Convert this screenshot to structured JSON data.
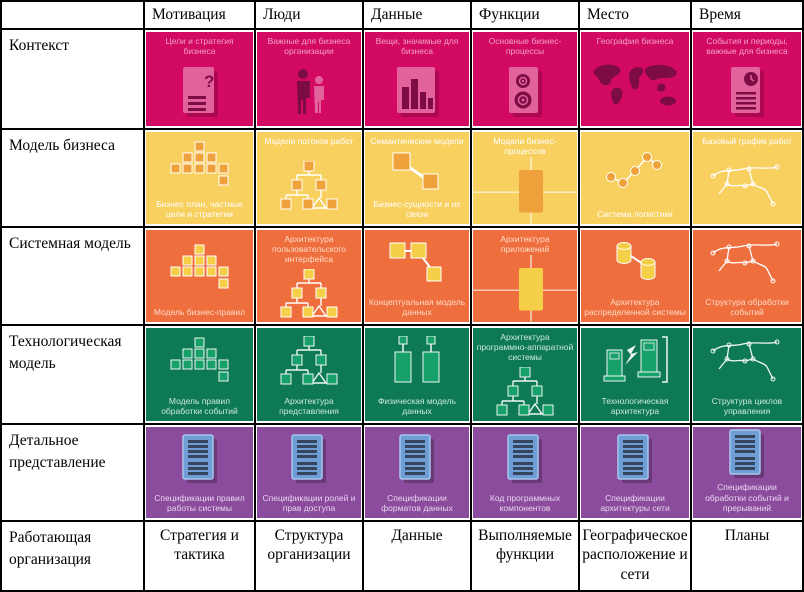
{
  "framework": {
    "columns": [
      "Мотивация",
      "Люди",
      "Данные",
      "Функции",
      "Место",
      "Время"
    ],
    "perspectives": [
      {
        "label": "Контекст",
        "bg": "#d20a64",
        "caption_color": "#f2a1c5",
        "icon_colors": {
          "box": "#e2639c",
          "line": "#f5b5d0",
          "dark": "#7e0c44"
        },
        "cells": [
          {
            "caption_top": "Цели и стратегия бизнеса",
            "icon": "document-question-icon"
          },
          {
            "caption_top": "Важные для бизнеса организации",
            "icon": "people-icon"
          },
          {
            "caption_top": "Вещи, значимые для бизнеса",
            "icon": "buildings-icon"
          },
          {
            "caption_top": "Основные бизнес-процессы",
            "icon": "document-gears-icon"
          },
          {
            "caption_top": "География бизнеса",
            "icon": "world-map-icon"
          },
          {
            "caption_top": "События и периоды, важные для бизнеса",
            "icon": "document-clock-icon"
          }
        ]
      },
      {
        "label": "Модель бизнеса",
        "bg": "#f8d060",
        "caption_color": "#ffffff",
        "icon_colors": {
          "box": "#efa23c",
          "line": "#ffffff",
          "dark": "#c77f24"
        },
        "cells": [
          {
            "caption_bottom": "Бизнес план, частные цели и стратегии",
            "icon": "pyramid-boxes-icon"
          },
          {
            "caption_top": "Модели потоков работ",
            "icon": "tree-boxes-icon"
          },
          {
            "caption_top": "Семантические модели",
            "caption_bottom": "Бизнес-сущности и их связи",
            "icon": "linked-boxes-2-icon"
          },
          {
            "caption_top": "Модели бизнес-процессов",
            "icon": "process-cross-icon"
          },
          {
            "caption_bottom": "Система логистики",
            "icon": "network-nodes-icon"
          },
          {
            "caption_top": "Базовый график работ",
            "icon": "sketch-network-icon"
          }
        ]
      },
      {
        "label": "Системная модель",
        "bg": "#ee6f3d",
        "caption_color": "#ffd9c6",
        "icon_colors": {
          "box": "#f6cf48",
          "line": "#ffffff",
          "dark": "#d8ab2a"
        },
        "cells": [
          {
            "caption_bottom": "Модель бизнес-правил",
            "icon": "pyramid-boxes-icon"
          },
          {
            "caption_top": "Архитектура пользовательского интерфейса",
            "icon": "tree-boxes-icon"
          },
          {
            "caption_bottom": "Концептуальная модель данных",
            "icon": "linked-boxes-3-icon"
          },
          {
            "caption_top": "Архитектура приложений",
            "icon": "process-cross-icon"
          },
          {
            "caption_bottom": "Архитектура распределенной системы",
            "icon": "cylinders-icon"
          },
          {
            "caption_bottom": "Структура обработки событий",
            "icon": "sketch-network-icon"
          }
        ]
      },
      {
        "label": "Технологическая модель",
        "bg": "#0d7a55",
        "caption_color": "#cfe9db",
        "icon_colors": {
          "box": "#17a069",
          "line": "#eef7f2",
          "dark": "#0a5c40"
        },
        "cells": [
          {
            "caption_bottom": "Модель правил обработки событий",
            "icon": "pyramid-boxes-icon"
          },
          {
            "caption_bottom": "Архитектура представления",
            "icon": "tree-boxes-icon"
          },
          {
            "caption_bottom": "Физическая модель данных",
            "icon": "data-columns-icon"
          },
          {
            "caption_top": "Архитектура программно-аппаратной системы",
            "icon": "tree-boxes-icon"
          },
          {
            "caption_bottom": "Технологическая архитектура",
            "icon": "computers-lightning-icon"
          },
          {
            "caption_bottom": "Структура циклов управления",
            "icon": "sketch-network-icon"
          }
        ]
      },
      {
        "label": "Детальное представление",
        "bg": "#8c4c9e",
        "caption_color": "#e9d5ef",
        "icon_colors": {
          "box": "#6f9ed6",
          "line": "#a6c6ea",
          "dark": "#35455c"
        },
        "cells": [
          {
            "caption_bottom": "Спецификации правил работы системы",
            "icon": "spec-document-icon"
          },
          {
            "caption_bottom": "Спецификации ролей и прав доступа",
            "icon": "spec-document-icon"
          },
          {
            "caption_bottom": "Спецификации форматов данных",
            "icon": "spec-document-icon"
          },
          {
            "caption_bottom": "Код программных компонентов",
            "icon": "spec-document-icon"
          },
          {
            "caption_bottom": "Спецификации архитектуры сети",
            "icon": "spec-document-icon"
          },
          {
            "caption_bottom": "Спецификации обработки событий и прерываний",
            "icon": "spec-document-icon"
          }
        ]
      }
    ],
    "footer": {
      "label": "Работающая организация",
      "cells": [
        "Стратегия и тактика",
        "Структура организации",
        "Данные",
        "Выполняемые функции",
        "Географическое расположение и сети",
        "Планы"
      ]
    }
  }
}
